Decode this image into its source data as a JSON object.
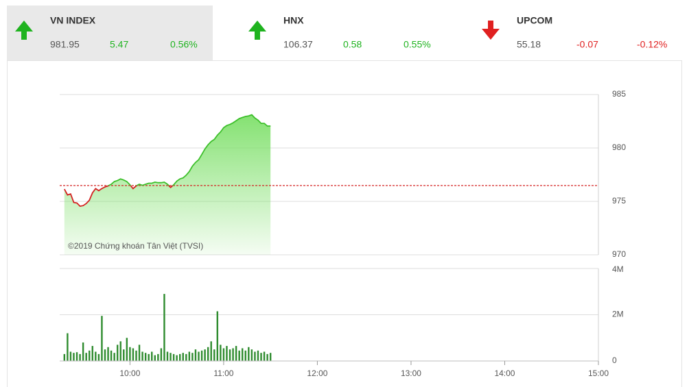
{
  "indices": [
    {
      "name": "VN INDEX",
      "value": "981.95",
      "change": "5.47",
      "pct": "0.56%"
    },
    {
      "name": "HNX",
      "value": "106.37",
      "change": "0.58",
      "pct": "0.55%"
    },
    {
      "name": "UPCOM",
      "value": "55.18",
      "change": "-0.07",
      "pct": "-0.12%"
    }
  ],
  "chart_data": [
    {
      "type": "area",
      "annotation": "©2019 Chứng khoán Tân Việt (TVSI)",
      "x": [
        558,
        560,
        562,
        564,
        566,
        568,
        570,
        572,
        574,
        576,
        578,
        580,
        582,
        584,
        586,
        588,
        590,
        592,
        594,
        596,
        598,
        600,
        602,
        604,
        606,
        608,
        610,
        612,
        614,
        616,
        618,
        620,
        622,
        624,
        626,
        628,
        630,
        632,
        634,
        636,
        638,
        640,
        642,
        644,
        646,
        648,
        650,
        652,
        654,
        656,
        658,
        660,
        662,
        664,
        666,
        668,
        670,
        672,
        674,
        676,
        678,
        680,
        682,
        684,
        686,
        688,
        690
      ],
      "values": [
        976.15,
        975.6,
        975.7,
        974.9,
        974.85,
        974.55,
        974.6,
        974.8,
        975.1,
        975.8,
        976.2,
        976.0,
        976.2,
        976.35,
        976.45,
        976.6,
        976.85,
        976.95,
        977.1,
        977.0,
        976.85,
        976.55,
        976.2,
        976.45,
        976.6,
        976.5,
        976.6,
        976.7,
        976.7,
        976.8,
        976.75,
        976.75,
        976.8,
        976.6,
        976.3,
        976.55,
        976.9,
        977.1,
        977.2,
        977.45,
        977.8,
        978.3,
        978.65,
        978.9,
        979.4,
        979.9,
        980.3,
        980.6,
        980.8,
        981.2,
        981.5,
        981.9,
        982.1,
        982.2,
        982.35,
        982.55,
        982.75,
        982.85,
        982.95,
        983.0,
        983.1,
        982.8,
        982.6,
        982.3,
        982.3,
        982.05,
        982.05
      ],
      "reference": 976.48,
      "color": "#3cbf2a",
      "down_color": "#d42020",
      "fill_color": "#7ee06a",
      "reference_color": "#d42020",
      "xlim": [
        555,
        900
      ],
      "ylim": [
        970,
        985
      ],
      "yticks": [
        970,
        975,
        980,
        985
      ],
      "grid": true
    },
    {
      "type": "bar",
      "x": [
        558,
        560,
        562,
        564,
        566,
        568,
        570,
        572,
        574,
        576,
        578,
        580,
        582,
        584,
        586,
        588,
        590,
        592,
        594,
        596,
        598,
        600,
        602,
        604,
        606,
        608,
        610,
        612,
        614,
        616,
        618,
        620,
        622,
        624,
        626,
        628,
        630,
        632,
        634,
        636,
        638,
        640,
        642,
        644,
        646,
        648,
        650,
        652,
        654,
        656,
        658,
        660,
        662,
        664,
        666,
        668,
        670,
        672,
        674,
        676,
        678,
        680,
        682,
        684,
        686,
        688,
        690
      ],
      "values": [
        300000,
        1200000,
        400000,
        350000,
        380000,
        300000,
        800000,
        350000,
        450000,
        650000,
        400000,
        300000,
        1950000,
        500000,
        600000,
        450000,
        350000,
        700000,
        850000,
        500000,
        1000000,
        600000,
        550000,
        450000,
        700000,
        400000,
        350000,
        300000,
        400000,
        250000,
        300000,
        550000,
        2900000,
        400000,
        350000,
        300000,
        250000,
        300000,
        350000,
        300000,
        400000,
        350000,
        500000,
        400000,
        450000,
        500000,
        600000,
        850000,
        500000,
        2150000,
        700000,
        550000,
        650000,
        500000,
        550000,
        650000,
        450000,
        550000,
        450000,
        600000,
        500000,
        400000,
        450000,
        350000,
        400000,
        300000,
        350000
      ],
      "color": "#2e8b2e",
      "xlim": [
        555,
        900
      ],
      "xticks": [
        {
          "value": 600,
          "label": "10:00"
        },
        {
          "value": 660,
          "label": "11:00"
        },
        {
          "value": 720,
          "label": "12:00"
        },
        {
          "value": 780,
          "label": "13:00"
        },
        {
          "value": 840,
          "label": "14:00"
        },
        {
          "value": 900,
          "label": "15:00"
        }
      ],
      "ylim": [
        0,
        4000000
      ],
      "yticks": [
        0,
        {
          "value": 2000000,
          "label": "2M"
        },
        {
          "value": 4000000,
          "label": "4M"
        }
      ],
      "grid": true
    }
  ]
}
